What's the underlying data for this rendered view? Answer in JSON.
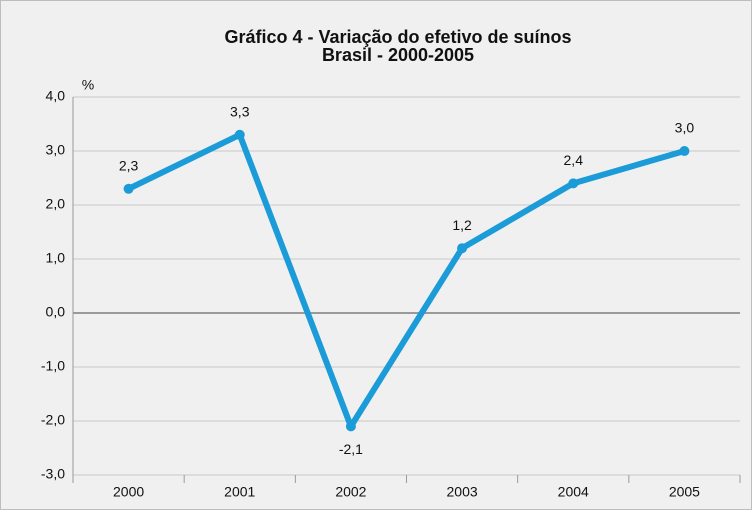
{
  "chart_data": {
    "type": "line",
    "title": "Gráfico 4 - Variação do efetivo de suínos",
    "subtitle": "Brasil - 2000-2005",
    "y_label": "%",
    "categories": [
      "2000",
      "2001",
      "2002",
      "2003",
      "2004",
      "2005"
    ],
    "series": [
      {
        "name": "Variação",
        "color": "#1b9bd7",
        "values": [
          2.3,
          3.3,
          -2.1,
          1.2,
          2.4,
          3.0
        ],
        "value_labels": [
          "2,3",
          "3,3",
          "-2,1",
          "1,2",
          "2,4",
          "3,0"
        ]
      }
    ],
    "ylim": [
      -3,
      4
    ],
    "yticks": [
      {
        "value": -3,
        "label": "-3,0"
      },
      {
        "value": -2,
        "label": "-2,0"
      },
      {
        "value": -1,
        "label": "-1,0"
      },
      {
        "value": 0,
        "label": "0,0"
      },
      {
        "value": 1,
        "label": "1,0"
      },
      {
        "value": 2,
        "label": "2,0"
      },
      {
        "value": 3,
        "label": "3,0"
      },
      {
        "value": 4,
        "label": "4,0"
      }
    ],
    "grid": true
  }
}
